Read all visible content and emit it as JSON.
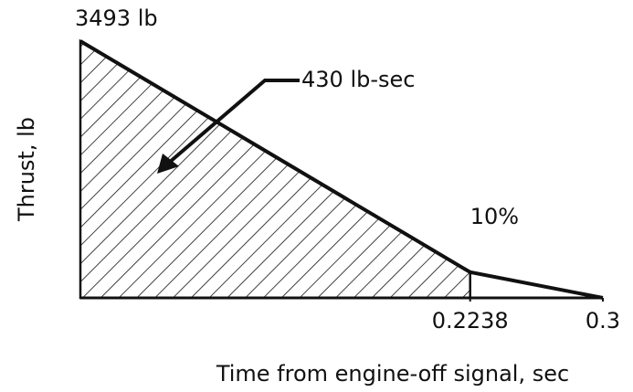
{
  "chart_data": {
    "type": "line",
    "x": [
      0,
      0.2238,
      0.3
    ],
    "values": [
      3493,
      349.3,
      0
    ],
    "value_labels": [
      "3493 lb",
      null,
      null
    ],
    "xlim": [
      0,
      0.3
    ],
    "ylim": [
      0,
      3493
    ],
    "xticks": [
      0.2238,
      0.3
    ],
    "xlabel": "Time from engine-off signal, sec",
    "ylabel": "Thrust, lb",
    "annotations": [
      "430 lb-sec",
      "10%"
    ],
    "color": "#111111"
  }
}
